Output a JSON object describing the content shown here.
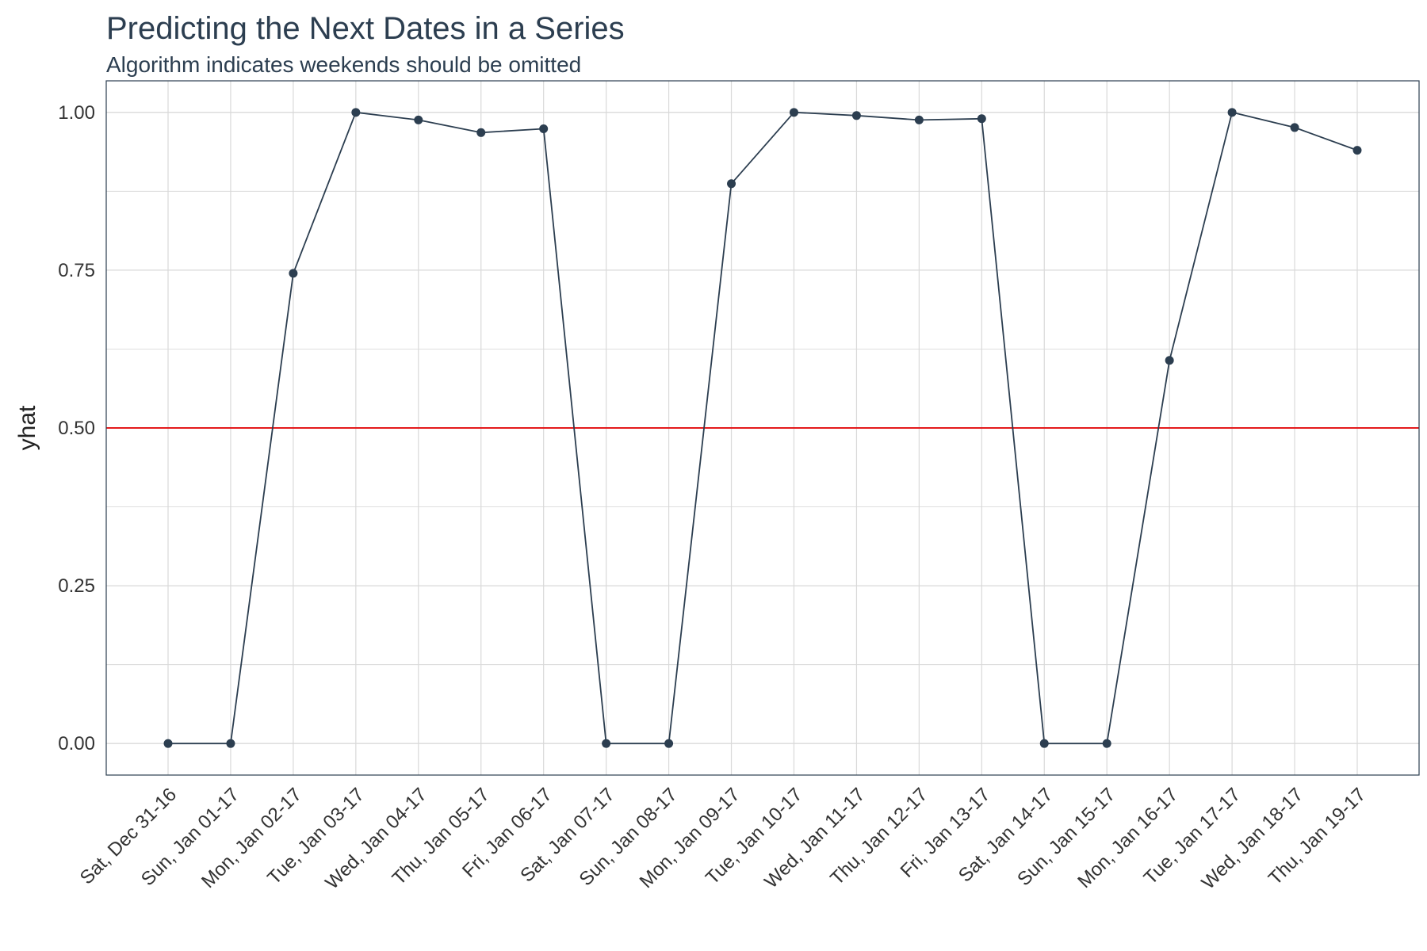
{
  "chart_data": {
    "type": "line",
    "title": "Predicting the Next Dates in a Series",
    "subtitle": "Algorithm indicates weekends should be omitted",
    "xlabel": "",
    "ylabel": "yhat",
    "categories": [
      "Sat, Dec 31-16",
      "Sun, Jan 01-17",
      "Mon, Jan 02-17",
      "Tue, Jan 03-17",
      "Wed, Jan 04-17",
      "Thu, Jan 05-17",
      "Fri, Jan 06-17",
      "Sat, Jan 07-17",
      "Sun, Jan 08-17",
      "Mon, Jan 09-17",
      "Tue, Jan 10-17",
      "Wed, Jan 11-17",
      "Thu, Jan 12-17",
      "Fri, Jan 13-17",
      "Sat, Jan 14-17",
      "Sun, Jan 15-17",
      "Mon, Jan 16-17",
      "Tue, Jan 17-17",
      "Wed, Jan 18-17",
      "Thu, Jan 19-17"
    ],
    "series": [
      {
        "values": [
          0.0,
          0.0,
          0.745,
          1.0,
          0.988,
          0.968,
          0.974,
          0.0,
          0.0,
          0.887,
          1.0,
          0.995,
          0.988,
          0.99,
          0.0,
          0.0,
          0.607,
          1.0,
          0.976,
          0.94
        ]
      }
    ],
    "yticks": [
      "0.00",
      "0.25",
      "0.50",
      "0.75",
      "1.00"
    ],
    "ylim": [
      -0.05,
      1.05
    ],
    "reference_line": {
      "y": 0.5,
      "color": "#e41a1c"
    },
    "colors": {
      "series": "#2c3e50",
      "grid": "#d9d9d9",
      "border": "#2c3e50",
      "text": "#2c3e50"
    },
    "grid": true,
    "legend": "none"
  }
}
